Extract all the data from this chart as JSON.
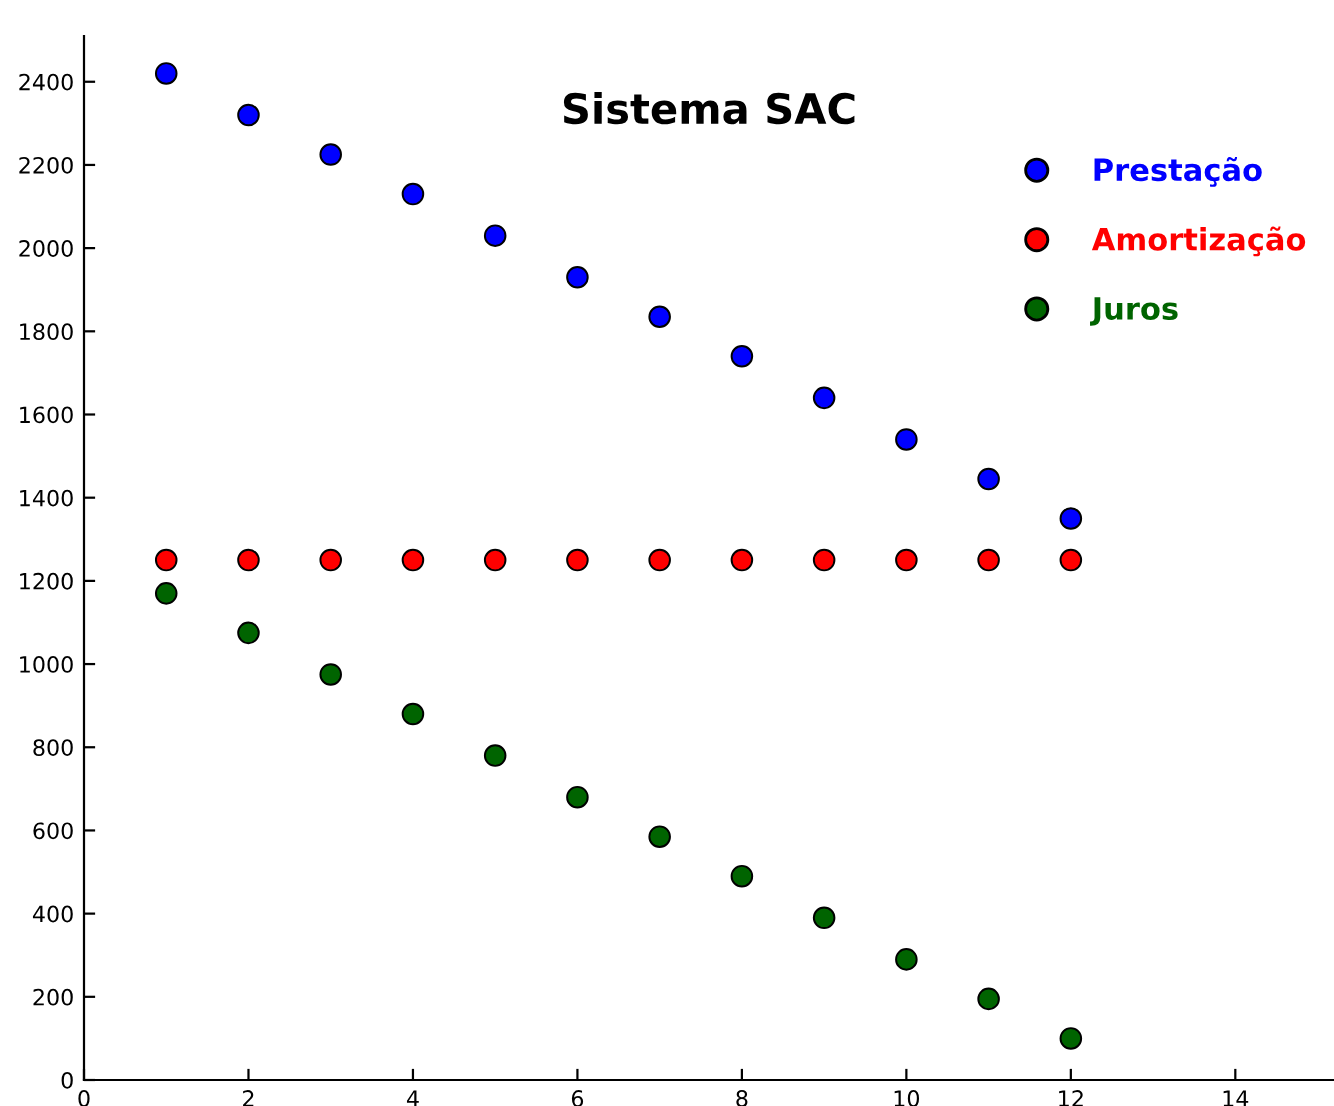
{
  "chart_data": {
    "type": "scatter",
    "title": "Sistema SAC",
    "x": [
      1,
      2,
      3,
      4,
      5,
      6,
      7,
      8,
      9,
      10,
      11,
      12
    ],
    "series": [
      {
        "name": "Prestação",
        "color": "#0000ff",
        "values": [
          2420,
          2320,
          2225,
          2130,
          2030,
          1930,
          1835,
          1740,
          1640,
          1540,
          1445,
          1350
        ]
      },
      {
        "name": "Amortização",
        "color": "#ff0000",
        "values": [
          1250,
          1250,
          1250,
          1250,
          1250,
          1250,
          1250,
          1250,
          1250,
          1250,
          1250,
          1250
        ]
      },
      {
        "name": "Juros",
        "color": "#006400",
        "values": [
          1170,
          1075,
          975,
          880,
          780,
          680,
          585,
          490,
          390,
          290,
          195,
          100
        ]
      }
    ],
    "xlim": [
      0,
      15.2
    ],
    "ylim": [
      0,
      2510
    ],
    "xticks": [
      0,
      2,
      4,
      6,
      8,
      10,
      12,
      14
    ],
    "yticks": [
      0,
      200,
      400,
      600,
      800,
      1000,
      1200,
      1400,
      1600,
      1800,
      2000,
      2200,
      2400
    ],
    "marker": "circle",
    "grid": false,
    "legend": "top right"
  }
}
